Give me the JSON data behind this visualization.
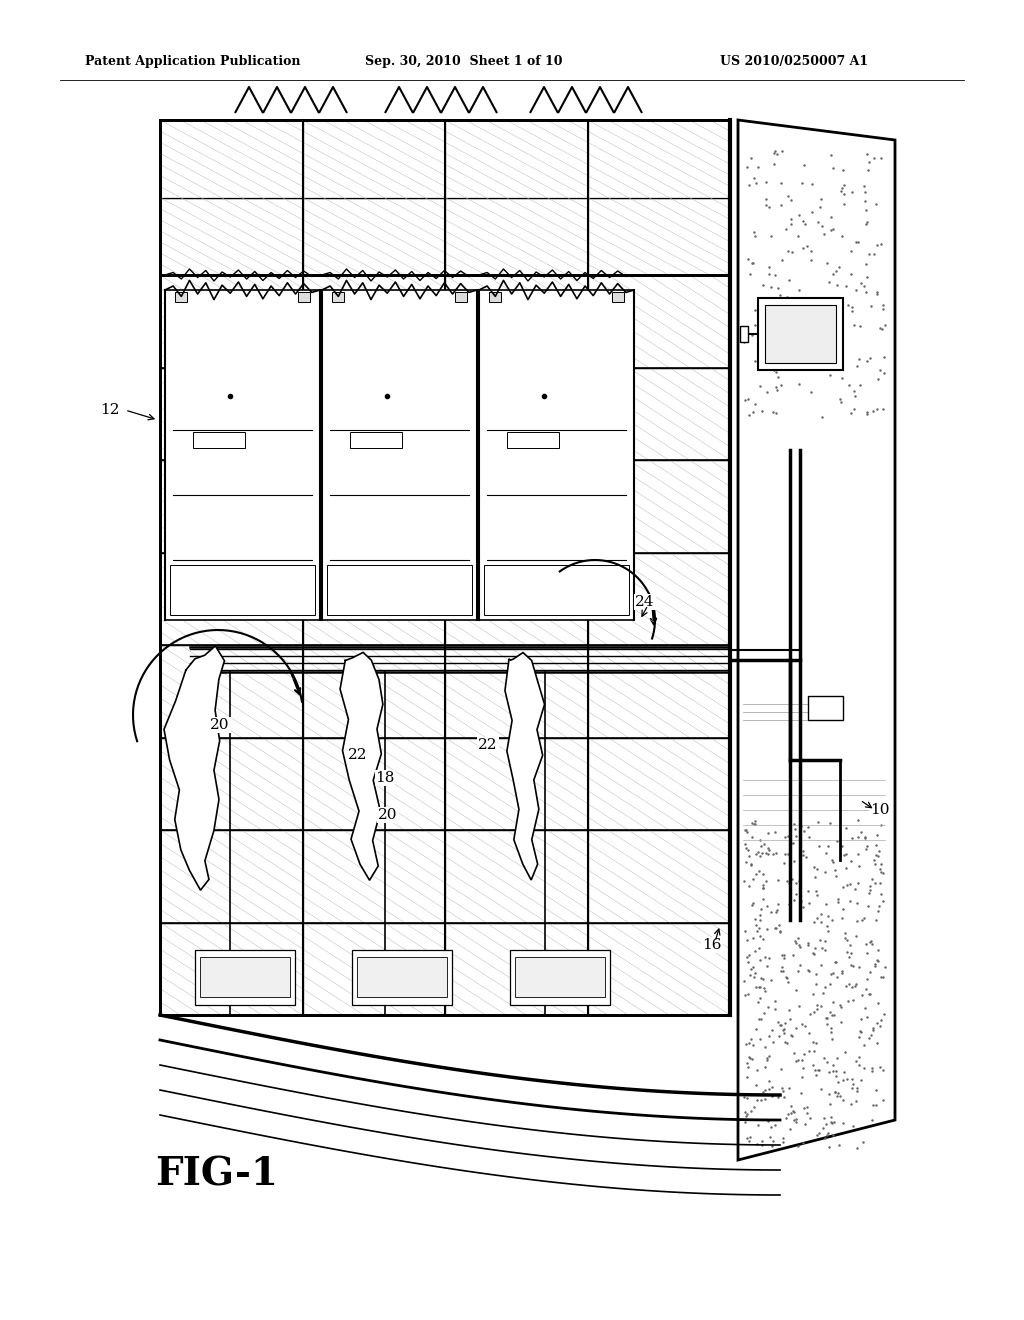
{
  "bg_color": "#ffffff",
  "header_left": "Patent Application Publication",
  "header_mid": "Sep. 30, 2010  Sheet 1 of 10",
  "header_right": "US 2010/0250007 A1",
  "figure_label": "FIG-1",
  "grid_hatch_color": "#bbbbbb",
  "line_color": "#000000",
  "stipple_color": "#888888",
  "label_fontsize": 11,
  "header_fontsize": 9
}
